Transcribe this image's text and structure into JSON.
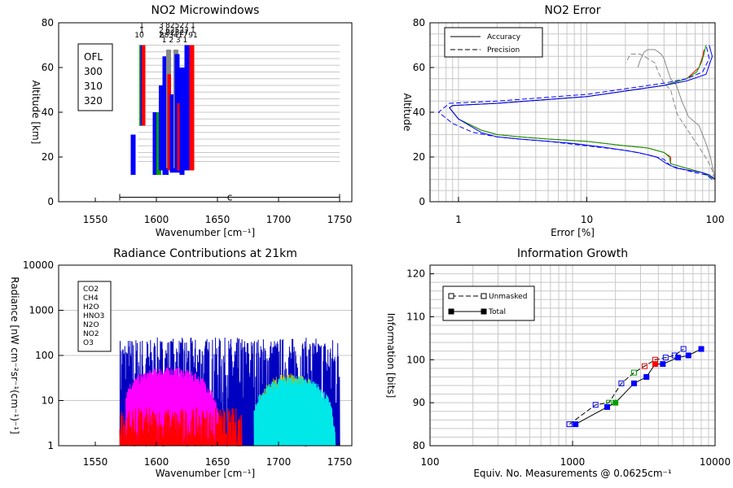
{
  "chart_data": [
    {
      "type": "bar",
      "title": "NO2 Microwindows",
      "xlabel": "Wavenumber [cm⁻¹]",
      "ylabel": "Altitude [km]",
      "xlim": [
        1520,
        1760
      ],
      "ylim": [
        0,
        80
      ],
      "xticks": [
        1550,
        1600,
        1650,
        1700,
        1750
      ],
      "yticks": [
        0,
        20,
        40,
        60,
        80
      ],
      "legend": [
        {
          "label": "OFL",
          "color": "#888888"
        },
        {
          "label": "300",
          "color": "#ff0000"
        },
        {
          "label": "310",
          "color": "#00a000"
        },
        {
          "label": "320",
          "color": "#0000ff"
        }
      ],
      "top_labels": [
        {
          "text": "1",
          "color": "#ff0000",
          "row": 0,
          "x": 1588
        },
        {
          "text": "1",
          "color": "#ff0000",
          "row": 1,
          "x": 1588
        },
        {
          "text": "10",
          "color": "#0000ff",
          "row": 2,
          "x": 1586
        },
        {
          "text": "3",
          "color": "#ff0000",
          "row": 0,
          "x": 1604
        },
        {
          "text": "2",
          "color": "#ff0000",
          "row": 1,
          "x": 1604
        },
        {
          "text": "2",
          "color": "#0000ff",
          "row": 2,
          "x": 1604
        },
        {
          "text": "82527",
          "color": "#ff0000",
          "row": 0,
          "x": 1617
        },
        {
          "text": "62527",
          "color": "#ff0000",
          "row": 1,
          "x": 1617
        },
        {
          "text": "82527",
          "color": "#00a000",
          "row": 1.5,
          "x": 1617
        },
        {
          "text": "883417",
          "color": "#0000ff",
          "row": 2,
          "x": 1614
        },
        {
          "text": "1 2 3 1",
          "color": "#888888",
          "row": 3,
          "x": 1615
        },
        {
          "text": "1",
          "color": "#ff0000",
          "row": 0,
          "x": 1630
        },
        {
          "text": "1",
          "color": "#ff0000",
          "row": 1,
          "x": 1630
        },
        {
          "text": "91",
          "color": "#0000ff",
          "row": 2,
          "x": 1630
        }
      ],
      "range_label": "c",
      "range": [
        1570,
        1750
      ],
      "hlines": [
        18,
        20,
        22,
        25,
        28,
        31,
        34,
        37,
        40,
        43,
        46,
        49,
        52,
        55,
        58,
        61,
        64,
        67,
        70
      ],
      "bars": [
        {
          "x0": 1579,
          "x1": 1583,
          "y0": 12,
          "y1": 30,
          "color": "#0000ff"
        },
        {
          "x0": 1586,
          "x1": 1590,
          "y0": 34,
          "y1": 70,
          "color": "#00a000"
        },
        {
          "x0": 1587,
          "x1": 1590,
          "y0": 34,
          "y1": 70,
          "color": "#0000ff"
        },
        {
          "x0": 1588,
          "x1": 1591,
          "y0": 34,
          "y1": 70,
          "color": "#ff0000"
        },
        {
          "x0": 1597,
          "x1": 1601,
          "y0": 12,
          "y1": 40,
          "color": "#0000ff"
        },
        {
          "x0": 1600,
          "x1": 1604,
          "y0": 12,
          "y1": 40,
          "color": "#00a000"
        },
        {
          "x0": 1602,
          "x1": 1607,
          "y0": 14,
          "y1": 52,
          "color": "#0000ff"
        },
        {
          "x0": 1605,
          "x1": 1610,
          "y0": 12,
          "y1": 65,
          "color": "#0000ff"
        },
        {
          "x0": 1608,
          "x1": 1612,
          "y0": 15,
          "y1": 68,
          "color": "#888888"
        },
        {
          "x0": 1609,
          "x1": 1612,
          "y0": 14,
          "y1": 57,
          "color": "#ff0000"
        },
        {
          "x0": 1611,
          "x1": 1615,
          "y0": 13,
          "y1": 48,
          "color": "#0000ff"
        },
        {
          "x0": 1614,
          "x1": 1618,
          "y0": 15,
          "y1": 68,
          "color": "#888888"
        },
        {
          "x0": 1615,
          "x1": 1619,
          "y0": 13,
          "y1": 66,
          "color": "#0000ff"
        },
        {
          "x0": 1617,
          "x1": 1621,
          "y0": 14,
          "y1": 44,
          "color": "#ff0000"
        },
        {
          "x0": 1619,
          "x1": 1623,
          "y0": 12,
          "y1": 60,
          "color": "#0000ff"
        },
        {
          "x0": 1623,
          "x1": 1628,
          "y0": 14,
          "y1": 70,
          "color": "#0000ff"
        },
        {
          "x0": 1627,
          "x1": 1631,
          "y0": 14,
          "y1": 70,
          "color": "#ff0000"
        }
      ]
    },
    {
      "type": "line",
      "title": "NO2 Error",
      "xlabel": "Error [%]",
      "ylabel": "Altitude",
      "xscale": "log",
      "xlim": [
        0.6,
        100
      ],
      "ylim": [
        0,
        80
      ],
      "xticks": [
        1,
        10,
        100
      ],
      "yticks": [
        0,
        20,
        40,
        60,
        80
      ],
      "legend": [
        {
          "label": "Accuracy",
          "style": "solid"
        },
        {
          "label": "Precision",
          "style": "dashed"
        }
      ],
      "series": [
        {
          "name": "OFL accuracy",
          "color": "#888888",
          "dash": "",
          "x": [
            100,
            97,
            95,
            92,
            85,
            75,
            62,
            60,
            55,
            50,
            45,
            42,
            40,
            38,
            34,
            30,
            28,
            26,
            25
          ],
          "y": [
            10,
            14,
            16,
            20,
            26,
            34,
            38,
            40,
            45,
            52,
            55,
            60,
            64,
            66,
            68,
            68,
            67,
            63,
            60
          ]
        },
        {
          "name": "OFL precision",
          "color": "#888888",
          "dash": "6,3",
          "x": [
            98,
            95,
            90,
            82,
            70,
            58,
            52,
            50,
            48,
            45,
            40,
            36,
            34,
            30,
            26,
            22,
            20
          ],
          "y": [
            10,
            14,
            17,
            21,
            27,
            34,
            38,
            40,
            44,
            50,
            53,
            58,
            62,
            64,
            66,
            66,
            62
          ]
        },
        {
          "name": "300 accuracy",
          "color": "#ff0000",
          "dash": "",
          "x": [
            100,
            80,
            60,
            45,
            45,
            40,
            30,
            20,
            10,
            5,
            3,
            2,
            1.5,
            1,
            0.85,
            0.9,
            2,
            10,
            40,
            60,
            75,
            80,
            82
          ],
          "y": [
            10,
            13,
            15,
            17,
            20,
            22,
            24,
            25,
            27,
            28,
            29,
            30,
            32,
            37,
            42,
            43,
            44,
            47,
            52,
            55,
            60,
            65,
            68
          ]
        },
        {
          "name": "310 accuracy",
          "color": "#00a000",
          "dash": "",
          "x": [
            100,
            80,
            60,
            45,
            44,
            40,
            30,
            20,
            10,
            5,
            3,
            2,
            1.5,
            1,
            0.85,
            0.9,
            2,
            10,
            40,
            60,
            72,
            78,
            82,
            85
          ],
          "y": [
            10,
            13,
            15,
            17,
            20,
            22,
            24,
            25,
            27,
            28,
            29,
            30,
            32,
            37,
            42,
            43,
            44,
            47,
            52,
            55,
            58,
            62,
            66,
            70
          ]
        },
        {
          "name": "320 accuracy",
          "color": "#0000ff",
          "dash": "",
          "x": [
            100,
            90,
            80,
            50,
            42,
            35,
            25,
            15,
            8,
            5,
            3,
            2,
            1.5,
            1,
            0.85,
            0.9,
            2,
            10,
            40,
            60,
            85,
            95,
            90
          ],
          "y": [
            10,
            12,
            13,
            15,
            17,
            20,
            22,
            24,
            26,
            27,
            28,
            29,
            31,
            37,
            42,
            43,
            44,
            47,
            52,
            54,
            57,
            65,
            70
          ]
        },
        {
          "name": "320 precision",
          "color": "#0000ff",
          "dash": "6,3",
          "x": [
            95,
            85,
            70,
            45,
            40,
            30,
            20,
            10,
            5,
            3,
            2,
            1.3,
            0.9,
            0.7,
            0.85,
            2,
            10,
            40,
            60,
            80,
            90,
            85
          ],
          "y": [
            10,
            12,
            13,
            16,
            19,
            21,
            23,
            25,
            27,
            28,
            29,
            31,
            35,
            40,
            44,
            45,
            48,
            53,
            55,
            58,
            64,
            70
          ]
        }
      ]
    },
    {
      "type": "line",
      "title": "Radiance Contributions at 21km",
      "xlabel": "Wavenumber [cm⁻¹]",
      "ylabel": "Radiance [nW cm⁻²sr⁻¹(cm⁻¹)⁻¹]",
      "yscale": "log",
      "xlim": [
        1520,
        1760
      ],
      "ylim": [
        1,
        10000
      ],
      "xticks": [
        1550,
        1600,
        1650,
        1700,
        1750
      ],
      "yticks": [
        1,
        10,
        100,
        1000,
        10000
      ],
      "legend": [
        {
          "label": "CO2",
          "color": "#000000"
        },
        {
          "label": "CH4",
          "color": "#ff0000"
        },
        {
          "label": "H2O",
          "color": "#0000c0"
        },
        {
          "label": "HNO3",
          "color": "#b8b800"
        },
        {
          "label": "N2O",
          "color": "#00d000"
        },
        {
          "label": "NO2",
          "color": "#ff00ff"
        },
        {
          "label": "O3",
          "color": "#00e8e8"
        }
      ],
      "bands": [
        {
          "name": "H2O",
          "color": "#0000c0",
          "x0": 1570,
          "x1": 1750,
          "peak": 250,
          "kind": "noise"
        },
        {
          "name": "NO2",
          "color": "#ff00ff",
          "x0": 1575,
          "x1": 1660,
          "center": 1610,
          "peak": 55,
          "kind": "band"
        },
        {
          "name": "HNO3",
          "color": "#b8b800",
          "x0": 1680,
          "x1": 1740,
          "center": 1710,
          "peak": 40,
          "kind": "band"
        },
        {
          "name": "O3",
          "color": "#00e8e8",
          "x0": 1680,
          "x1": 1750,
          "center": 1712,
          "peak": 35,
          "kind": "band"
        },
        {
          "name": "CH4",
          "color": "#ff0000",
          "x0": 1570,
          "x1": 1670,
          "peak": 6,
          "kind": "noise"
        }
      ]
    },
    {
      "type": "scatter",
      "title": "Information Growth",
      "xlabel": "Equiv. No. Measurements @ 0.0625cm⁻¹",
      "ylabel": "Information [bits]",
      "xscale": "log",
      "xlim": [
        100,
        10000
      ],
      "ylim": [
        80,
        122
      ],
      "xticks": [
        100,
        1000,
        10000
      ],
      "yticks": [
        80,
        90,
        100,
        110,
        120
      ],
      "legend": [
        {
          "label": "Unmasked",
          "style": "dashed-open"
        },
        {
          "label": "Total",
          "style": "solid-filled"
        }
      ],
      "series": [
        {
          "name": "Unmasked",
          "dash": "6,3",
          "filled": false,
          "x": [
            950,
            1450,
            1800,
            2200,
            2700,
            3200,
            3800,
            4500,
            5200,
            6000
          ],
          "y": [
            85,
            89.5,
            90,
            94.5,
            97,
            98.5,
            100,
            100.5,
            101,
            102.5
          ],
          "colors": [
            "#0000ff",
            "#0000ff",
            "#00a000",
            "#0000ff",
            "#00a000",
            "#ff0000",
            "#ff0000",
            "#0000ff",
            "#0000ff",
            "#0000ff"
          ]
        },
        {
          "name": "Total",
          "dash": "",
          "filled": true,
          "x": [
            1050,
            1750,
            2000,
            2700,
            3300,
            3800,
            4300,
            5500,
            6500,
            8000
          ],
          "y": [
            85,
            89,
            90,
            94.5,
            96,
            99,
            99,
            100.5,
            101,
            102.5
          ],
          "colors": [
            "#0000ff",
            "#0000ff",
            "#00a000",
            "#0000ff",
            "#0000ff",
            "#ff0000",
            "#0000ff",
            "#0000ff",
            "#0000ff",
            "#0000ff"
          ]
        }
      ]
    }
  ]
}
